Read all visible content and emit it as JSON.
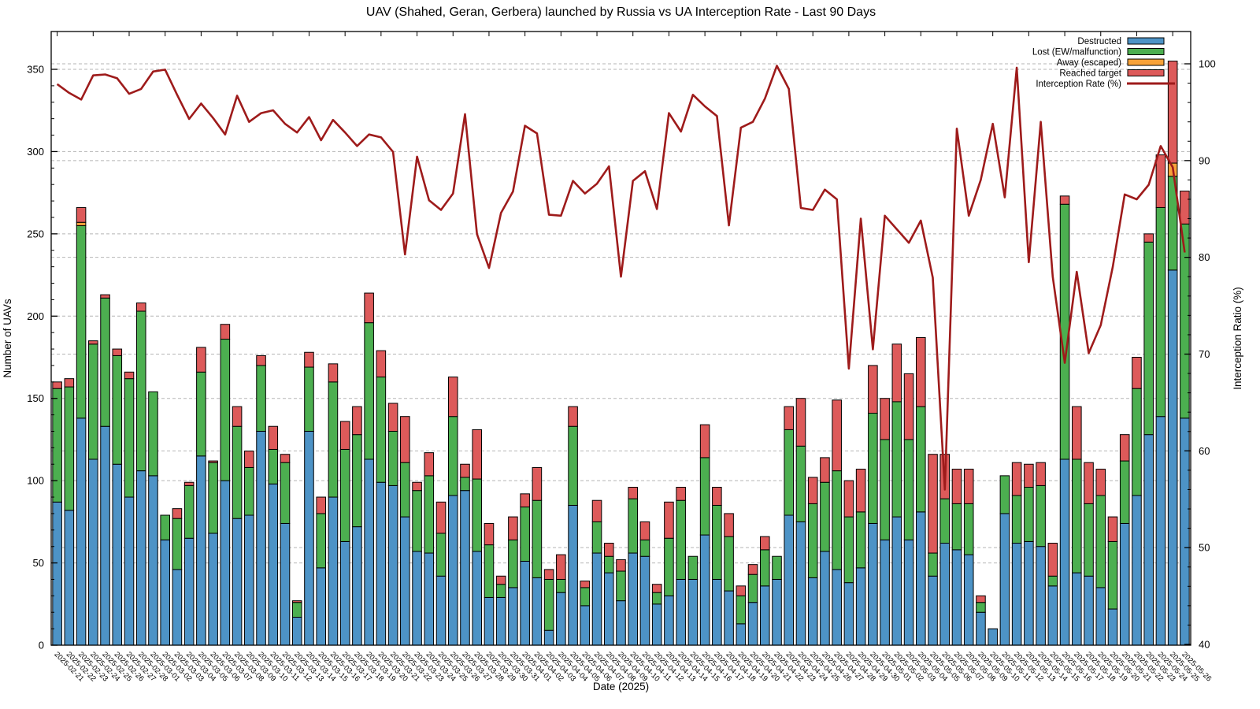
{
  "page": {
    "title": "UAV (Shahed, Geran, Gerbera) launched by Russia vs UA Interception Rate - Last 90 Days"
  },
  "chart_data": {
    "type": "bar",
    "subtype": "stacked-bars-with-line-overlay",
    "title": "UAV (Shahed, Geran, Gerbera) launched by Russia vs UA Interception Rate - Last 90 Days",
    "xlabel": "Date (2025)",
    "ylabel_left": "Number of UAVs",
    "ylabel_right": "Interception Ratio (%)",
    "ylim_left": [
      0,
      350
    ],
    "ylim_right": [
      40,
      100
    ],
    "left_ticks": [
      0,
      50,
      100,
      150,
      200,
      250,
      300,
      350
    ],
    "right_ticks": [
      40,
      50,
      60,
      70,
      80,
      90,
      100
    ],
    "grid": "dashed, both y-axes",
    "legend_position": "top-right inside plot",
    "legend": [
      {
        "label": "Destructed",
        "type": "bar",
        "color": "#4d93c6"
      },
      {
        "label": "Lost (EW/malfunction)",
        "type": "bar",
        "color": "#4caf50"
      },
      {
        "label": "Away (escaped)",
        "type": "bar",
        "color": "#f7a239"
      },
      {
        "label": "Reached target",
        "type": "bar",
        "color": "#dd5a5a"
      },
      {
        "label": "Interception Rate (%)",
        "type": "line",
        "color": "#9e1b1b"
      }
    ],
    "colors": {
      "destroyed": "#4d93c6",
      "lost": "#4caf50",
      "away": "#f7a239",
      "reached": "#dd5a5a",
      "rate_line": "#9e1b1b",
      "bar_border": "#000000",
      "grid": "#b5b5b5"
    },
    "columns": [
      "date",
      "destroyed",
      "lost_ew_malfunction",
      "away_escaped",
      "reached_target",
      "interception_rate_pct"
    ],
    "days": [
      [
        "2025-02-21",
        87,
        69,
        0,
        4,
        97.9
      ],
      [
        "2025-02-22",
        82,
        75,
        0,
        5,
        97.0
      ],
      [
        "2025-02-23",
        138,
        117,
        2,
        9,
        96.3
      ],
      [
        "2025-02-24",
        113,
        70,
        0,
        2,
        98.8
      ],
      [
        "2025-02-25",
        133,
        78,
        0,
        2,
        98.9
      ],
      [
        "2025-02-26",
        110,
        66,
        0,
        4,
        98.5
      ],
      [
        "2025-02-27",
        90,
        72,
        0,
        4,
        96.9
      ],
      [
        "2025-02-28",
        106,
        97,
        0,
        5,
        97.4
      ],
      [
        "2025-03-01",
        103,
        51,
        0,
        0,
        99.2
      ],
      [
        "2025-03-02",
        64,
        15,
        0,
        0,
        99.4
      ],
      [
        "2025-03-03",
        46,
        31,
        0,
        6,
        96.8
      ],
      [
        "2025-03-04",
        65,
        32,
        0,
        2,
        94.3
      ],
      [
        "2025-03-05",
        115,
        51,
        0,
        15,
        95.9
      ],
      [
        "2025-03-06",
        68,
        43,
        0,
        1,
        94.4
      ],
      [
        "2025-03-07",
        100,
        86,
        0,
        9,
        92.7
      ],
      [
        "2025-03-08",
        77,
        56,
        0,
        12,
        96.7
      ],
      [
        "2025-03-09",
        79,
        29,
        0,
        10,
        94.0
      ],
      [
        "2025-03-10",
        130,
        40,
        0,
        6,
        94.9
      ],
      [
        "2025-03-11",
        98,
        21,
        0,
        14,
        95.2
      ],
      [
        "2025-03-12",
        74,
        37,
        0,
        5,
        93.8
      ],
      [
        "2025-03-13",
        17,
        9,
        0,
        1,
        92.9
      ],
      [
        "2025-03-14",
        130,
        39,
        0,
        9,
        94.5
      ],
      [
        "2025-03-15",
        47,
        33,
        0,
        10,
        92.1
      ],
      [
        "2025-03-16",
        90,
        70,
        0,
        11,
        94.2
      ],
      [
        "2025-03-17",
        63,
        56,
        0,
        17,
        92.9
      ],
      [
        "2025-03-18",
        72,
        56,
        0,
        17,
        91.5
      ],
      [
        "2025-03-19",
        113,
        83,
        0,
        18,
        92.7
      ],
      [
        "2025-03-20",
        99,
        64,
        0,
        16,
        92.4
      ],
      [
        "2025-03-21",
        97,
        33,
        0,
        17,
        90.9
      ],
      [
        "2025-03-22",
        78,
        33,
        0,
        28,
        80.3
      ],
      [
        "2025-03-23",
        57,
        37,
        0,
        5,
        90.4
      ],
      [
        "2025-03-24",
        56,
        47,
        0,
        14,
        85.9
      ],
      [
        "2025-03-25",
        42,
        26,
        0,
        19,
        84.9
      ],
      [
        "2025-03-26",
        91,
        48,
        0,
        24,
        86.6
      ],
      [
        "2025-03-27",
        94,
        8,
        0,
        8,
        94.8
      ],
      [
        "2025-03-28",
        57,
        44,
        0,
        30,
        82.4
      ],
      [
        "2025-03-29",
        29,
        32,
        0,
        13,
        78.9
      ],
      [
        "2025-03-30",
        29,
        8,
        0,
        5,
        84.6
      ],
      [
        "2025-03-31",
        35,
        29,
        0,
        14,
        86.8
      ],
      [
        "2025-04-01",
        51,
        33,
        0,
        8,
        93.6
      ],
      [
        "2025-04-02",
        41,
        47,
        0,
        20,
        92.8
      ],
      [
        "2025-04-03",
        9,
        31,
        0,
        6,
        84.4
      ],
      [
        "2025-04-04",
        32,
        8,
        0,
        15,
        84.3
      ],
      [
        "2025-04-05",
        85,
        48,
        0,
        12,
        87.9
      ],
      [
        "2025-04-06",
        24,
        11,
        0,
        4,
        86.6
      ],
      [
        "2025-04-07",
        56,
        19,
        0,
        13,
        87.6
      ],
      [
        "2025-04-08",
        44,
        10,
        0,
        8,
        89.4
      ],
      [
        "2025-04-09",
        27,
        18,
        0,
        7,
        78.0
      ],
      [
        "2025-04-10",
        56,
        33,
        0,
        7,
        87.9
      ],
      [
        "2025-04-11",
        54,
        10,
        0,
        11,
        88.9
      ],
      [
        "2025-04-12",
        25,
        7,
        0,
        5,
        85.0
      ],
      [
        "2025-04-13",
        30,
        35,
        0,
        22,
        94.9
      ],
      [
        "2025-04-14",
        40,
        48,
        0,
        8,
        93.0
      ],
      [
        "2025-04-15",
        40,
        14,
        0,
        0,
        96.8
      ],
      [
        "2025-04-16",
        67,
        47,
        0,
        20,
        95.6
      ],
      [
        "2025-04-17",
        40,
        45,
        0,
        11,
        94.6
      ],
      [
        "2025-04-18",
        33,
        33,
        0,
        14,
        83.3
      ],
      [
        "2025-04-19",
        13,
        17,
        0,
        6,
        93.4
      ],
      [
        "2025-04-20",
        26,
        17,
        0,
        6,
        94.0
      ],
      [
        "2025-04-21",
        36,
        22,
        0,
        8,
        96.4
      ],
      [
        "2025-04-22",
        40,
        14,
        0,
        0,
        99.8
      ],
      [
        "2025-04-23",
        79,
        52,
        0,
        14,
        97.4
      ],
      [
        "2025-04-24",
        75,
        46,
        0,
        29,
        85.1
      ],
      [
        "2025-04-25",
        41,
        45,
        0,
        16,
        84.9
      ],
      [
        "2025-04-26",
        57,
        42,
        0,
        15,
        87.0
      ],
      [
        "2025-04-27",
        46,
        60,
        0,
        43,
        86.0
      ],
      [
        "2025-04-28",
        38,
        40,
        0,
        22,
        68.5
      ],
      [
        "2025-04-29",
        47,
        34,
        0,
        26,
        84.0
      ],
      [
        "2025-04-30",
        74,
        67,
        0,
        29,
        70.5
      ],
      [
        "2025-05-01",
        64,
        61,
        0,
        25,
        84.3
      ],
      [
        "2025-05-02",
        78,
        70,
        0,
        35,
        82.9
      ],
      [
        "2025-05-03",
        64,
        61,
        0,
        40,
        81.5
      ],
      [
        "2025-05-04",
        81,
        64,
        0,
        42,
        83.8
      ],
      [
        "2025-05-05",
        42,
        14,
        0,
        60,
        77.9
      ],
      [
        "2025-05-06",
        62,
        27,
        0,
        27,
        56.0
      ],
      [
        "2025-05-07",
        58,
        28,
        0,
        21,
        93.3
      ],
      [
        "2025-05-08",
        55,
        31,
        0,
        21,
        84.3
      ],
      [
        "2025-05-09",
        20,
        6,
        0,
        4,
        88.0
      ],
      [
        "2025-05-10",
        10,
        0,
        0,
        0,
        93.8
      ],
      [
        "2025-05-11",
        80,
        23,
        0,
        0,
        86.2
      ],
      [
        "2025-05-12",
        62,
        29,
        0,
        20,
        99.6
      ],
      [
        "2025-05-13",
        63,
        33,
        0,
        14,
        79.5
      ],
      [
        "2025-05-14",
        60,
        37,
        0,
        14,
        94.0
      ],
      [
        "2025-05-15",
        36,
        6,
        0,
        20,
        78.0
      ],
      [
        "2025-05-16",
        113,
        155,
        0,
        5,
        69.1
      ],
      [
        "2025-05-17",
        44,
        69,
        0,
        32,
        78.5
      ],
      [
        "2025-05-18",
        42,
        44,
        0,
        25,
        70.1
      ],
      [
        "2025-05-19",
        35,
        56,
        0,
        16,
        73.0
      ],
      [
        "2025-05-20",
        22,
        41,
        0,
        15,
        79.0
      ],
      [
        "2025-05-21",
        74,
        38,
        0,
        16,
        86.5
      ],
      [
        "2025-05-22",
        91,
        65,
        0,
        19,
        86.0
      ],
      [
        "2025-05-23",
        128,
        117,
        0,
        5,
        87.5
      ],
      [
        "2025-05-24",
        139,
        127,
        0,
        32,
        91.5
      ],
      [
        "2025-05-25",
        228,
        57,
        8,
        62,
        89.3
      ],
      [
        "2025-05-26",
        138,
        118,
        0,
        20,
        80.5
      ]
    ]
  }
}
